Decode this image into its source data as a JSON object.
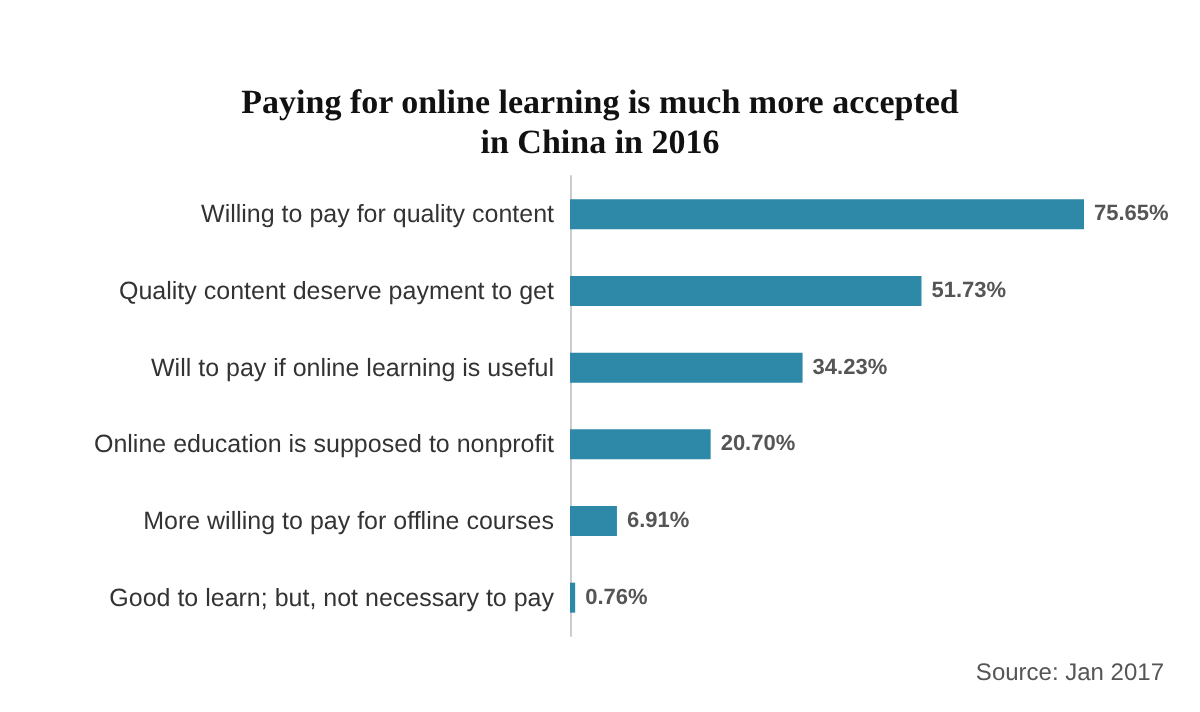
{
  "chart_data": {
    "type": "bar",
    "orientation": "horizontal",
    "title": "Paying for online learning is much more accepted\nin China in 2016",
    "categories": [
      "Willing to pay for quality content",
      "Quality content deserve payment to get",
      "Will to pay if online learning is useful",
      "Online education is supposed to nonprofit",
      "More willing to pay for offline courses",
      "Good to learn; but, not necessary to pay"
    ],
    "values": [
      75.65,
      51.73,
      34.23,
      20.7,
      6.91,
      0.76
    ],
    "value_labels": [
      "75.65%",
      "51.73%",
      "34.23%",
      "20.70%",
      "6.91%",
      "0.76%"
    ],
    "color": "#2e88a8",
    "grid": false,
    "annotations": [
      "Source: Jan 2017"
    ]
  }
}
